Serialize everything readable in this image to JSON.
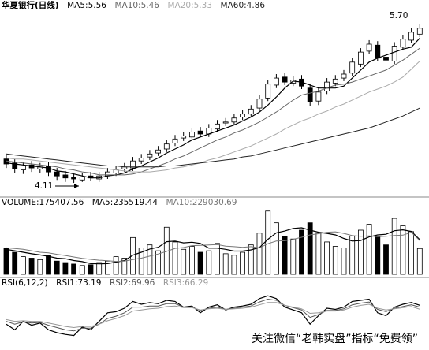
{
  "chart_data": [
    {
      "type": "candlestick",
      "title": "华夏银行(日线)",
      "ylim": [
        4.0,
        5.8
      ],
      "up_color": "#ffffff",
      "down_color": "#000000",
      "edge_color": "#000000",
      "open": [
        4.35,
        4.31,
        4.24,
        4.29,
        4.25,
        4.28,
        4.22,
        4.19,
        4.17,
        4.14,
        4.18,
        4.15,
        4.18,
        4.21,
        4.25,
        4.26,
        4.33,
        4.37,
        4.41,
        4.45,
        4.51,
        4.56,
        4.57,
        4.63,
        4.6,
        4.65,
        4.71,
        4.72,
        4.77,
        4.8,
        4.86,
        4.96,
        5.09,
        5.17,
        5.11,
        5.15,
        5.06,
        4.93,
        5.03,
        5.11,
        5.16,
        5.21,
        5.3,
        5.43,
        5.49,
        5.37,
        5.33,
        5.47,
        5.54,
        5.6
      ],
      "high": [
        4.39,
        4.35,
        4.32,
        4.33,
        4.31,
        4.32,
        4.26,
        4.23,
        4.2,
        4.21,
        4.22,
        4.22,
        4.26,
        4.28,
        4.31,
        4.37,
        4.4,
        4.44,
        4.48,
        4.54,
        4.59,
        4.62,
        4.66,
        4.67,
        4.7,
        4.74,
        4.76,
        4.8,
        4.84,
        4.89,
        4.99,
        5.14,
        5.2,
        5.21,
        5.18,
        5.19,
        5.1,
        5.06,
        5.16,
        5.19,
        5.24,
        5.36,
        5.46,
        5.54,
        5.53,
        5.41,
        5.52,
        5.59,
        5.66,
        5.7
      ],
      "low": [
        4.26,
        4.21,
        4.2,
        4.22,
        4.21,
        4.18,
        4.14,
        4.12,
        4.11,
        4.12,
        4.13,
        4.12,
        4.15,
        4.18,
        4.22,
        4.23,
        4.3,
        4.34,
        4.38,
        4.42,
        4.48,
        4.53,
        4.54,
        4.57,
        4.57,
        4.62,
        4.68,
        4.69,
        4.74,
        4.77,
        4.83,
        4.93,
        5.06,
        5.09,
        5.08,
        5.05,
        4.88,
        4.89,
        5.0,
        5.08,
        5.13,
        5.18,
        5.27,
        5.4,
        5.33,
        5.31,
        5.3,
        5.44,
        5.51,
        5.57
      ],
      "close": [
        4.3,
        4.25,
        4.28,
        4.26,
        4.27,
        4.22,
        4.18,
        4.16,
        4.15,
        4.17,
        4.16,
        4.18,
        4.22,
        4.24,
        4.27,
        4.33,
        4.36,
        4.4,
        4.44,
        4.5,
        4.55,
        4.58,
        4.62,
        4.6,
        4.66,
        4.7,
        4.72,
        4.76,
        4.8,
        4.85,
        4.95,
        5.1,
        5.16,
        5.12,
        5.14,
        5.08,
        4.92,
        5.02,
        5.12,
        5.15,
        5.2,
        5.32,
        5.42,
        5.5,
        5.36,
        5.34,
        5.48,
        5.55,
        5.62,
        5.66
      ],
      "series": [
        {
          "name": "MA5:5.56",
          "color": "#000000",
          "values": [
            4.31,
            4.3,
            4.29,
            4.28,
            4.27,
            4.26,
            4.23,
            4.22,
            4.2,
            4.18,
            4.16,
            4.16,
            4.18,
            4.19,
            4.21,
            4.25,
            4.28,
            4.32,
            4.36,
            4.41,
            4.45,
            4.49,
            4.54,
            4.57,
            4.6,
            4.63,
            4.66,
            4.69,
            4.73,
            4.77,
            4.82,
            4.89,
            4.97,
            5.06,
            5.13,
            5.12,
            5.09,
            5.06,
            5.06,
            5.06,
            5.08,
            5.16,
            5.24,
            5.32,
            5.36,
            5.39,
            5.42,
            5.45,
            5.47,
            5.56
          ]
        },
        {
          "name": "MA10:5.46",
          "color": "#666666",
          "values": [
            4.33,
            4.32,
            4.31,
            4.3,
            4.29,
            4.28,
            4.27,
            4.25,
            4.24,
            4.22,
            4.21,
            4.19,
            4.19,
            4.19,
            4.19,
            4.2,
            4.22,
            4.25,
            4.28,
            4.31,
            4.35,
            4.38,
            4.42,
            4.46,
            4.5,
            4.54,
            4.57,
            4.61,
            4.64,
            4.68,
            4.72,
            4.77,
            4.82,
            4.88,
            4.94,
            4.99,
            5.01,
            5.03,
            5.06,
            5.09,
            5.1,
            5.12,
            5.15,
            5.18,
            5.21,
            5.24,
            5.29,
            5.34,
            5.4,
            5.46
          ]
        },
        {
          "name": "MA20:5.33",
          "color": "#aaaaaa",
          "values": [
            4.36,
            4.35,
            4.35,
            4.34,
            4.33,
            4.32,
            4.31,
            4.3,
            4.29,
            4.28,
            4.27,
            4.26,
            4.25,
            4.24,
            4.23,
            4.22,
            4.22,
            4.22,
            4.23,
            4.24,
            4.26,
            4.27,
            4.29,
            4.31,
            4.34,
            4.36,
            4.39,
            4.42,
            4.45,
            4.48,
            4.52,
            4.56,
            4.6,
            4.65,
            4.69,
            4.73,
            4.76,
            4.8,
            4.83,
            4.87,
            4.9,
            4.94,
            4.98,
            5.02,
            5.05,
            5.08,
            5.12,
            5.17,
            5.25,
            5.33
          ]
        },
        {
          "name": "MA60:4.86",
          "color": "#222222",
          "values": [
            4.4,
            4.39,
            4.38,
            4.37,
            4.36,
            4.35,
            4.34,
            4.33,
            4.32,
            4.31,
            4.3,
            4.29,
            4.28,
            4.28,
            4.27,
            4.27,
            4.27,
            4.27,
            4.27,
            4.28,
            4.28,
            4.29,
            4.3,
            4.31,
            4.32,
            4.33,
            4.34,
            4.35,
            4.37,
            4.38,
            4.4,
            4.42,
            4.44,
            4.46,
            4.48,
            4.5,
            4.52,
            4.54,
            4.56,
            4.58,
            4.6,
            4.62,
            4.64,
            4.66,
            4.69,
            4.72,
            4.75,
            4.78,
            4.82,
            4.86
          ]
        }
      ],
      "annotations": [
        "5.70",
        "4.11"
      ]
    },
    {
      "type": "bar",
      "title": "VOLUME:175407.56",
      "ylim": [
        0,
        450000
      ],
      "values": [
        180000,
        150000,
        120000,
        110000,
        100000,
        130000,
        90000,
        80000,
        70000,
        60000,
        65000,
        80000,
        90000,
        120000,
        110000,
        250000,
        180000,
        200000,
        160000,
        320000,
        220000,
        170000,
        190000,
        150000,
        160000,
        210000,
        140000,
        130000,
        150000,
        200000,
        280000,
        430000,
        350000,
        260000,
        240000,
        300000,
        350000,
        280000,
        220000,
        190000,
        180000,
        260000,
        300000,
        340000,
        260000,
        200000,
        380000,
        330000,
        290000,
        175407.56
      ],
      "series": [
        {
          "name": "MA5:235519.44",
          "color": "#000000",
          "values": [
            170000,
            160000,
            150000,
            140000,
            132000,
            122000,
            110000,
            106000,
            94000,
            86000,
            73000,
            71000,
            73000,
            83000,
            93000,
            130000,
            150000,
            172000,
            184000,
            222000,
            226000,
            214000,
            218000,
            210000,
            178000,
            178000,
            170000,
            158000,
            158000,
            166000,
            182000,
            238000,
            282000,
            294000,
            312000,
            316000,
            300000,
            286000,
            278000,
            268000,
            244000,
            226000,
            230000,
            254000,
            268000,
            272000,
            296000,
            302000,
            292000,
            235519.44
          ]
        },
        {
          "name": "MA10:229030.69",
          "color": "#777777",
          "values": [
            180000,
            175000,
            170000,
            160000,
            150000,
            146000,
            136000,
            128000,
            118000,
            109000,
            102000,
            96000,
            92000,
            88000,
            90000,
            100000,
            110000,
            124000,
            138000,
            156000,
            176000,
            182000,
            195000,
            197000,
            200000,
            202000,
            192000,
            188000,
            184000,
            188000,
            180000,
            208000,
            226000,
            228000,
            238000,
            252000,
            268000,
            276000,
            286000,
            289000,
            278000,
            263000,
            258000,
            261000,
            256000,
            258000,
            264000,
            266000,
            285000,
            229030.69
          ]
        }
      ]
    },
    {
      "type": "line",
      "title": "RSI(6,12,2)",
      "ylim": [
        0,
        100
      ],
      "series": [
        {
          "name": "RSI1:73.19",
          "color": "#000000",
          "values": [
            40,
            30,
            45,
            38,
            42,
            30,
            25,
            22,
            20,
            35,
            30,
            45,
            60,
            62,
            68,
            80,
            75,
            78,
            76,
            82,
            80,
            70,
            72,
            60,
            70,
            74,
            65,
            70,
            72,
            75,
            85,
            90,
            85,
            70,
            65,
            60,
            40,
            55,
            68,
            66,
            70,
            80,
            82,
            84,
            60,
            55,
            70,
            75,
            78,
            73.19
          ]
        },
        {
          "name": "RSI2:69.96",
          "color": "#555555",
          "values": [
            45,
            40,
            44,
            42,
            43,
            38,
            34,
            30,
            28,
            33,
            33,
            40,
            50,
            54,
            60,
            70,
            70,
            72,
            72,
            76,
            76,
            70,
            70,
            64,
            68,
            70,
            66,
            68,
            70,
            72,
            79,
            84,
            82,
            73,
            69,
            65,
            52,
            57,
            64,
            64,
            67,
            74,
            77,
            79,
            66,
            62,
            68,
            71,
            74,
            69.96
          ]
        },
        {
          "name": "RSI3:66.29",
          "color": "#999999",
          "values": [
            48,
            45,
            46,
            45,
            45,
            42,
            39,
            36,
            34,
            36,
            36,
            40,
            46,
            50,
            55,
            63,
            65,
            67,
            68,
            71,
            72,
            69,
            69,
            65,
            67,
            68,
            66,
            67,
            68,
            70,
            74,
            78,
            78,
            73,
            70,
            67,
            59,
            60,
            63,
            63,
            65,
            70,
            73,
            75,
            68,
            65,
            67,
            69,
            71,
            66.29
          ]
        }
      ]
    }
  ],
  "watermark": "关注微信“老韩实盘”指标“免费领”"
}
